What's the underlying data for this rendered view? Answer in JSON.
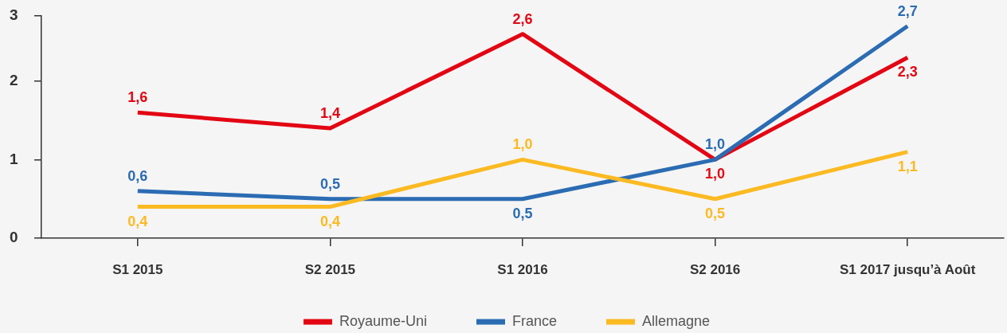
{
  "chart_data": {
    "type": "line",
    "categories": [
      "S1 2015",
      "S2 2015",
      "S1 2016",
      "S2 2016",
      "S1 2017 jusqu’à Août"
    ],
    "series": [
      {
        "name": "Royaume-Uni",
        "color": "#e30613",
        "values": [
          1.6,
          1.4,
          2.6,
          1.0,
          2.3
        ],
        "value_labels": [
          "1,6",
          "1,4",
          "2,6",
          "1,0",
          "2,3"
        ]
      },
      {
        "name": "France",
        "color": "#2b6cb3",
        "values": [
          0.6,
          0.5,
          0.5,
          1.0,
          2.7
        ],
        "value_labels": [
          "0,6",
          "0,5",
          "0,5",
          "1,0",
          "2,7"
        ]
      },
      {
        "name": "Allemagne",
        "color": "#fbba22",
        "values": [
          0.4,
          0.4,
          1.0,
          0.5,
          1.1
        ],
        "value_labels": [
          "0,4",
          "0,4",
          "1,0",
          "0,5",
          "1,1"
        ]
      }
    ],
    "ylim": [
      0,
      2.83
    ],
    "yticks": [
      0,
      1,
      2,
      {
        "value": 2.83,
        "label": "3"
      }
    ],
    "grid": false,
    "legend": "bottom"
  }
}
